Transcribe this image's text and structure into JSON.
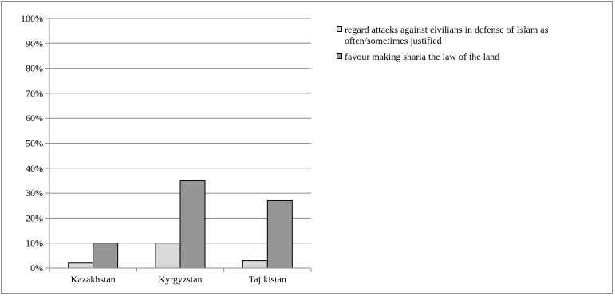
{
  "chart_data": {
    "type": "bar",
    "title": "",
    "xlabel": "",
    "ylabel": "",
    "categories": [
      "Kazakhstan",
      "Kyrgyzstan",
      "Tajikistan"
    ],
    "series": [
      {
        "name": "regard attacks against civilians in defense of Islam as often/sometimes justified",
        "values": [
          2,
          10,
          3
        ],
        "color": "#d9d9d9"
      },
      {
        "name": "favour making sharia the law of the land",
        "values": [
          10,
          35,
          27
        ],
        "color": "#969696"
      }
    ],
    "ylim": [
      0,
      100
    ],
    "y_ticks": [
      0,
      10,
      20,
      30,
      40,
      50,
      60,
      70,
      80,
      90,
      100
    ],
    "y_tick_labels": [
      "0%",
      "10%",
      "20%",
      "30%",
      "40%",
      "50%",
      "60%",
      "70%",
      "80%",
      "90%",
      "100%"
    ],
    "grid": true,
    "legend_position": "right"
  },
  "legend": {
    "series_1_label": "regard attacks against civilians in defense of Islam as often/sometimes justified",
    "series_2_label": "favour making sharia the law of the land"
  }
}
